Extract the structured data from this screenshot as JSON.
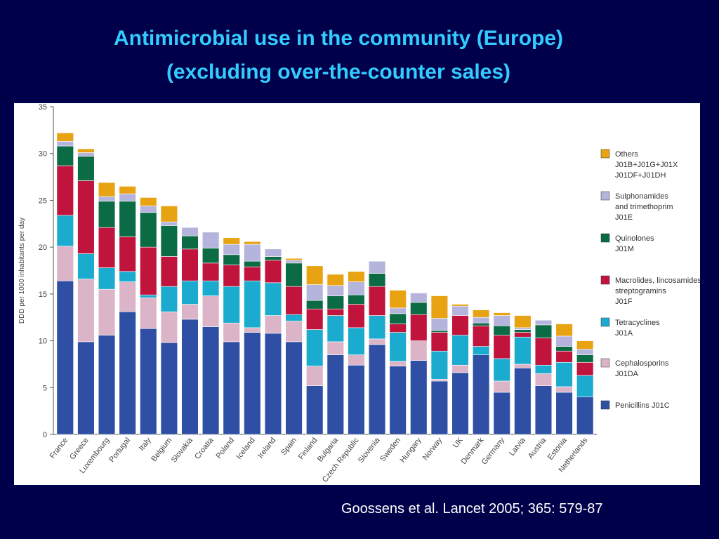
{
  "slide": {
    "title_line1": "Antimicrobial use in the community (Europe)",
    "title_line2": "(excluding over-the-counter sales)",
    "citation": "Goossens et al. Lancet 2005; 365: 579-87",
    "background_color": "#00004a",
    "title_color": "#33ccff"
  },
  "chart_data": {
    "type": "bar",
    "stacked": true,
    "ylabel": "DDD per 1000 inhabitants per day",
    "ylim": [
      0,
      35
    ],
    "yticks": [
      0,
      5,
      10,
      15,
      20,
      25,
      30,
      35
    ],
    "grid": false,
    "legend_position": "right",
    "categories": [
      "France",
      "Greece",
      "Luxembourg",
      "Portugal",
      "Italy",
      "Belgium",
      "Slovakia",
      "Croatia",
      "Poland",
      "Iceland",
      "Ireland",
      "Spain",
      "Finland",
      "Bulgaria",
      "Czech Republic",
      "Slovenia",
      "Sweden",
      "Hungary",
      "Norway",
      "UK",
      "Denmark",
      "Germany",
      "Latvia",
      "Austria",
      "Estonia",
      "Netherlands"
    ],
    "series": [
      {
        "name": "Penicillins J01C",
        "color": "#2e4fa3",
        "values": [
          16.4,
          9.9,
          10.6,
          13.1,
          11.3,
          9.8,
          12.3,
          11.5,
          9.9,
          10.9,
          10.8,
          9.9,
          5.2,
          8.5,
          7.4,
          9.6,
          7.3,
          7.9,
          5.7,
          6.6,
          8.5,
          4.5,
          7.1,
          5.2,
          4.5,
          4.0
        ]
      },
      {
        "name": "Cephalosporins J01DA",
        "color": "#dcb4c8",
        "values": [
          3.7,
          6.7,
          4.9,
          3.2,
          3.3,
          3.3,
          1.6,
          3.3,
          2.0,
          0.5,
          1.9,
          2.2,
          2.1,
          1.4,
          1.1,
          0.6,
          0.5,
          2.1,
          0.2,
          0.8,
          0.0,
          1.2,
          0.4,
          1.3,
          0.6,
          0.0
        ]
      },
      {
        "name": "Tetracyclines J01A",
        "color": "#1aabcf",
        "values": [
          3.3,
          2.7,
          2.3,
          1.1,
          0.3,
          2.7,
          2.5,
          1.6,
          3.9,
          5.0,
          3.5,
          0.7,
          3.9,
          2.8,
          2.9,
          2.5,
          3.1,
          0.0,
          3.0,
          3.2,
          0.9,
          2.4,
          2.9,
          0.9,
          2.6,
          2.3
        ]
      },
      {
        "name": "Macrolides, lincosamides, streptogramins J01F",
        "color": "#c0143c",
        "values": [
          5.3,
          7.8,
          4.3,
          3.7,
          5.1,
          3.2,
          3.4,
          1.9,
          2.3,
          1.5,
          2.4,
          3.0,
          2.2,
          0.7,
          2.5,
          3.1,
          0.9,
          2.8,
          2.0,
          2.1,
          2.2,
          2.5,
          0.5,
          2.9,
          1.2,
          1.4
        ]
      },
      {
        "name": "Quinolones J01M",
        "color": "#0b6b45",
        "values": [
          2.1,
          2.6,
          2.8,
          3.8,
          3.7,
          3.3,
          1.4,
          1.6,
          1.1,
          0.6,
          0.4,
          2.5,
          0.9,
          1.4,
          1.0,
          1.4,
          1.1,
          1.3,
          0.2,
          0.0,
          0.3,
          1.0,
          0.3,
          1.4,
          0.5,
          0.8
        ]
      },
      {
        "name": "Sulphonamides and trimethoprim J01E",
        "color": "#b4b4dc",
        "values": [
          0.5,
          0.4,
          0.5,
          0.8,
          0.7,
          0.4,
          0.9,
          1.7,
          1.1,
          1.8,
          0.8,
          0.3,
          1.7,
          1.1,
          1.4,
          1.3,
          0.6,
          1.0,
          1.3,
          1.0,
          0.6,
          1.1,
          0.2,
          0.5,
          1.1,
          0.6
        ]
      },
      {
        "name": "Others J01B+J01G+J01X J01DF+J01DH",
        "color": "#e8a313",
        "values": [
          0.9,
          0.4,
          1.5,
          0.8,
          0.9,
          1.7,
          0.0,
          0.0,
          0.7,
          0.3,
          0.0,
          0.2,
          2.0,
          1.2,
          1.1,
          0.0,
          1.9,
          0.0,
          2.4,
          0.2,
          0.8,
          0.3,
          1.3,
          0.0,
          1.3,
          0.9
        ]
      }
    ],
    "legend": [
      {
        "lines": [
          "Others",
          "J01B+J01G+J01X",
          "J01DF+J01DH"
        ],
        "color": "#e8a313"
      },
      {
        "lines": [
          "Sulphonamides",
          "and trimethoprim",
          "J01E"
        ],
        "color": "#b4b4dc"
      },
      {
        "lines": [
          "Quinolones",
          "J01M"
        ],
        "color": "#0b6b45"
      },
      {
        "lines": [
          "Macrolides, lincosamides,",
          "streptogramins",
          "J01F"
        ],
        "color": "#c0143c"
      },
      {
        "lines": [
          "Tetracyclines",
          "J01A"
        ],
        "color": "#1aabcf"
      },
      {
        "lines": [
          "Cephalosporins",
          "J01DA"
        ],
        "color": "#dcb4c8"
      },
      {
        "lines": [
          "Penicillins J01C"
        ],
        "color": "#2e4fa3"
      }
    ]
  }
}
